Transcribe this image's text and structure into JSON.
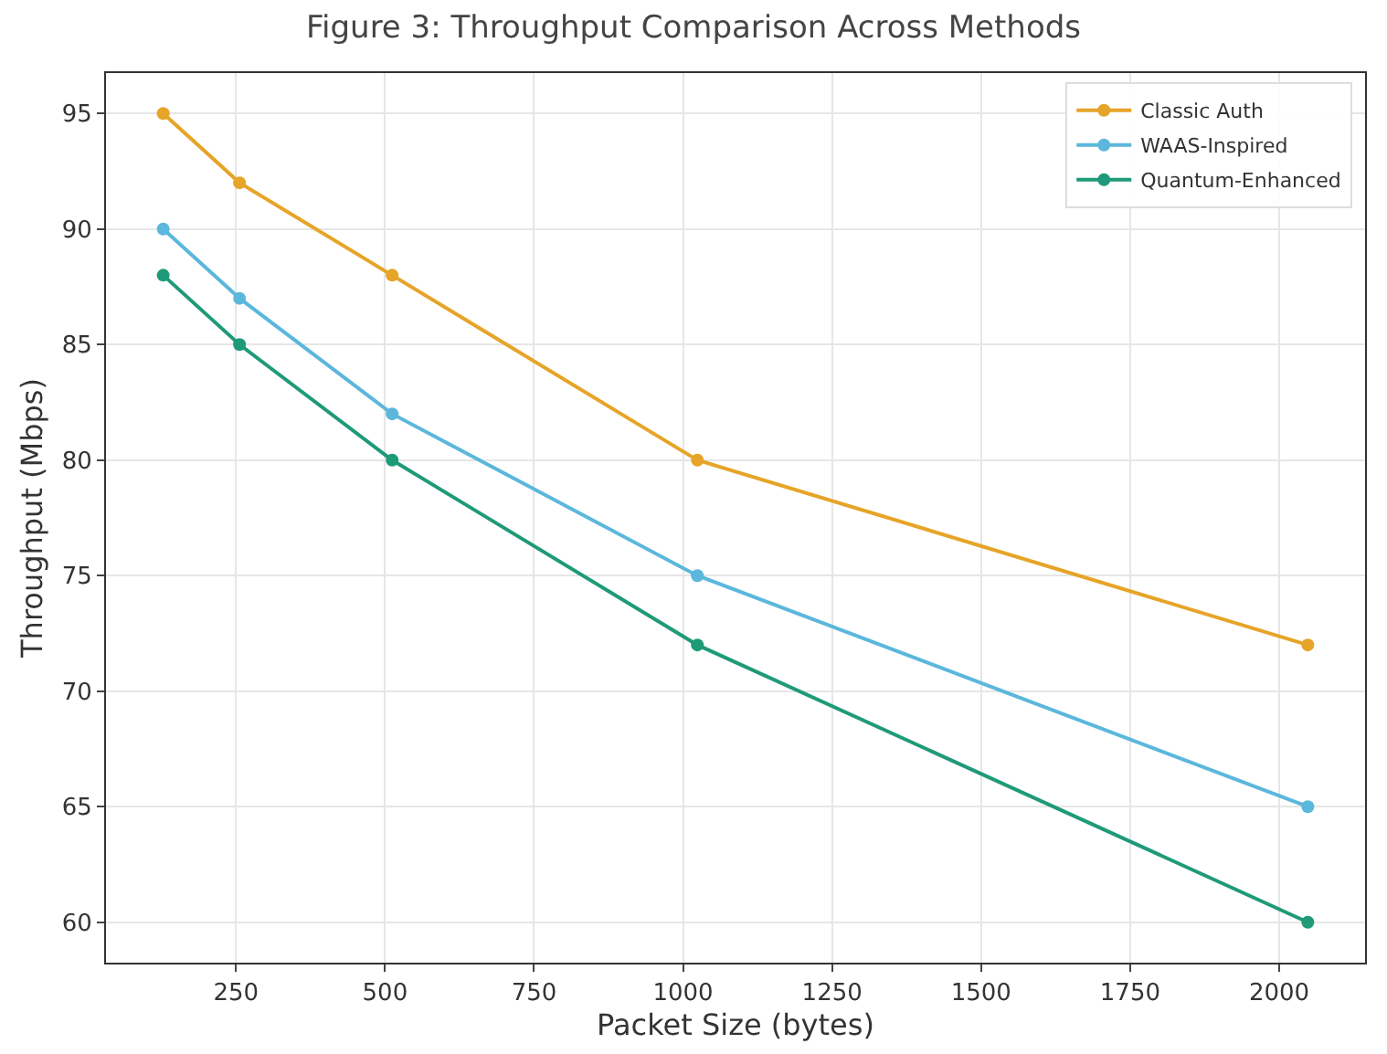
{
  "chart_data": {
    "type": "line",
    "title": "Figure 3: Throughput Comparison Across Methods",
    "xlabel": "Packet Size (bytes)",
    "ylabel": "Throughput (Mbps)",
    "x": [
      128,
      256,
      512,
      1024,
      2048
    ],
    "series": [
      {
        "name": "Classic Auth",
        "color": "#e6a428",
        "values": [
          95,
          92,
          88,
          80,
          72
        ]
      },
      {
        "name": "WAAS-Inspired",
        "color": "#5bb7dc",
        "values": [
          90,
          87,
          82,
          75,
          65
        ]
      },
      {
        "name": "Quantum-Enhanced",
        "color": "#1f9a78",
        "values": [
          88,
          85,
          80,
          72,
          60
        ]
      }
    ],
    "xlim": [
      32,
      2144
    ],
    "xticks": [
      250,
      500,
      750,
      1000,
      1250,
      1500,
      1750,
      2000
    ],
    "ylim": [
      58.25,
      96.75
    ],
    "yticks": [
      60,
      65,
      70,
      75,
      80,
      85,
      90,
      95
    ],
    "grid": true,
    "legend": "top right",
    "marker": "circle",
    "line_style": "solid"
  }
}
